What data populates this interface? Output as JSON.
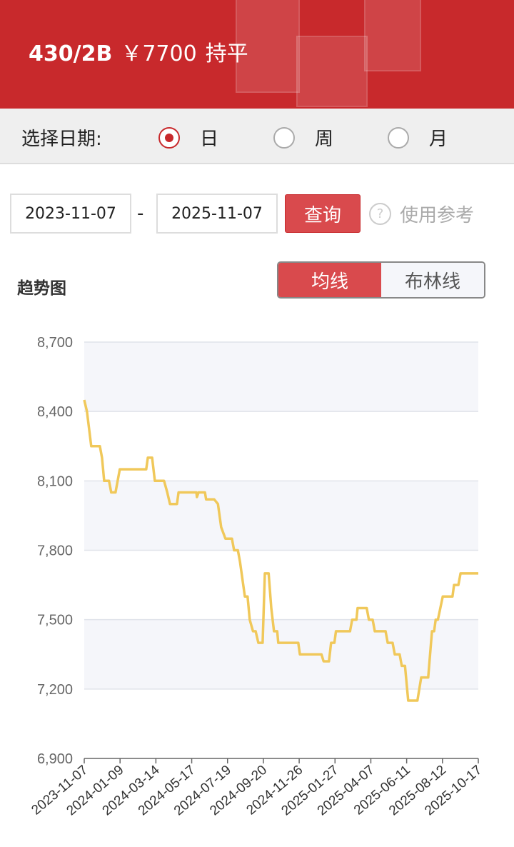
{
  "header": {
    "code": "430/2B",
    "price": "￥7700",
    "change": "持平"
  },
  "date_select": {
    "label": "选择日期:",
    "options": [
      {
        "label": "日",
        "selected": true
      },
      {
        "label": "周",
        "selected": false
      },
      {
        "label": "月",
        "selected": false
      }
    ]
  },
  "query": {
    "start": "2023-11-07",
    "end": "2025-11-07",
    "separator": "-",
    "button": "查询",
    "help_icon": "question-circle-icon",
    "help": "使用参考"
  },
  "trend": {
    "title": "趋势图",
    "tabs": [
      {
        "label": "均线",
        "active": true
      },
      {
        "label": "布林线",
        "active": false
      }
    ]
  },
  "colors": {
    "brand": "#c8292c",
    "line": "#f0c85a"
  },
  "chart_data": {
    "type": "line",
    "ylim": [
      6900,
      8700
    ],
    "yticks": [
      "8,700",
      "8,400",
      "8,100",
      "7,800",
      "7,500",
      "7,200",
      "6,900"
    ],
    "ytick_values": [
      8700,
      8400,
      8100,
      7800,
      7500,
      7200,
      6900
    ],
    "xlim": [
      "2023-11-07",
      "2025-11-07"
    ],
    "xticks": [
      "2023-11-07",
      "2024-01-09",
      "2024-03-14",
      "2024-05-17",
      "2024-07-19",
      "2024-09-20",
      "2024-11-26",
      "2025-01-27",
      "2025-04-07",
      "2025-06-11",
      "2025-08-12",
      "2025-10-17"
    ],
    "grid": true,
    "points": [
      [
        "2023-11-07",
        8450
      ],
      [
        "2023-11-12",
        8400
      ],
      [
        "2023-11-20",
        8250
      ],
      [
        "2023-12-06",
        8250
      ],
      [
        "2023-12-10",
        8200
      ],
      [
        "2023-12-14",
        8100
      ],
      [
        "2023-12-23",
        8100
      ],
      [
        "2023-12-27",
        8050
      ],
      [
        "2024-01-04",
        8050
      ],
      [
        "2024-01-12",
        8150
      ],
      [
        "2024-03-01",
        8150
      ],
      [
        "2024-03-04",
        8200
      ],
      [
        "2024-03-12",
        8200
      ],
      [
        "2024-03-17",
        8100
      ],
      [
        "2024-04-03",
        8100
      ],
      [
        "2024-04-09",
        8050
      ],
      [
        "2024-04-14",
        8000
      ],
      [
        "2024-04-27",
        8000
      ],
      [
        "2024-04-30",
        8050
      ],
      [
        "2024-06-02",
        8050
      ],
      [
        "2024-06-03",
        8030
      ],
      [
        "2024-06-06",
        8050
      ],
      [
        "2024-06-18",
        8050
      ],
      [
        "2024-06-20",
        8020
      ],
      [
        "2024-07-05",
        8020
      ],
      [
        "2024-07-12",
        8000
      ],
      [
        "2024-07-18",
        7900
      ],
      [
        "2024-07-26",
        7850
      ],
      [
        "2024-08-07",
        7850
      ],
      [
        "2024-08-11",
        7800
      ],
      [
        "2024-08-18",
        7800
      ],
      [
        "2024-08-22",
        7750
      ],
      [
        "2024-08-31",
        7600
      ],
      [
        "2024-09-05",
        7600
      ],
      [
        "2024-09-09",
        7500
      ],
      [
        "2024-09-15",
        7450
      ],
      [
        "2024-09-20",
        7450
      ],
      [
        "2024-09-25",
        7400
      ],
      [
        "2024-10-03",
        7400
      ],
      [
        "2024-10-07",
        7700
      ],
      [
        "2024-10-14",
        7700
      ],
      [
        "2024-10-19",
        7550
      ],
      [
        "2024-10-24",
        7450
      ],
      [
        "2024-10-30",
        7450
      ],
      [
        "2024-11-01",
        7400
      ],
      [
        "2024-12-08",
        7400
      ],
      [
        "2024-12-11",
        7350
      ],
      [
        "2025-01-20",
        7350
      ],
      [
        "2025-01-24",
        7320
      ],
      [
        "2025-02-03",
        7320
      ],
      [
        "2025-02-07",
        7400
      ],
      [
        "2025-02-13",
        7400
      ],
      [
        "2025-02-16",
        7450
      ],
      [
        "2025-03-14",
        7450
      ],
      [
        "2025-03-18",
        7500
      ],
      [
        "2025-03-26",
        7500
      ],
      [
        "2025-03-28",
        7550
      ],
      [
        "2025-04-14",
        7550
      ],
      [
        "2025-04-18",
        7500
      ],
      [
        "2025-04-25",
        7500
      ],
      [
        "2025-04-29",
        7450
      ],
      [
        "2025-05-19",
        7450
      ],
      [
        "2025-05-23",
        7400
      ],
      [
        "2025-06-01",
        7400
      ],
      [
        "2025-06-05",
        7350
      ],
      [
        "2025-06-14",
        7350
      ],
      [
        "2025-06-18",
        7300
      ],
      [
        "2025-06-24",
        7300
      ],
      [
        "2025-06-30",
        7150
      ],
      [
        "2025-07-17",
        7150
      ],
      [
        "2025-07-24",
        7250
      ],
      [
        "2025-08-06",
        7250
      ],
      [
        "2025-08-13",
        7450
      ],
      [
        "2025-08-17",
        7450
      ],
      [
        "2025-08-20",
        7500
      ],
      [
        "2025-08-24",
        7500
      ],
      [
        "2025-09-02",
        7600
      ],
      [
        "2025-09-20",
        7600
      ],
      [
        "2025-09-23",
        7650
      ],
      [
        "2025-10-01",
        7650
      ],
      [
        "2025-10-05",
        7700
      ],
      [
        "2025-11-07",
        7700
      ]
    ]
  }
}
